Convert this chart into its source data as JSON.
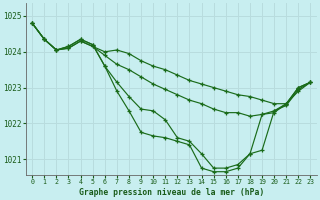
{
  "title": "Graphe pression niveau de la mer (hPa)",
  "bg_color": "#c8eef0",
  "grid_color": "#b8dcde",
  "line_color": "#1a6b1a",
  "marker_color": "#1a6b1a",
  "xlim": [
    -0.5,
    23.5
  ],
  "ylim": [
    1020.55,
    1025.35
  ],
  "yticks": [
    1021,
    1022,
    1023,
    1024,
    1025
  ],
  "xticks": [
    0,
    1,
    2,
    3,
    4,
    5,
    6,
    7,
    8,
    9,
    10,
    11,
    12,
    13,
    14,
    15,
    16,
    17,
    18,
    19,
    20,
    21,
    22,
    23
  ],
  "series": [
    [
      1024.8,
      1024.35,
      1024.05,
      1024.1,
      1024.3,
      1024.15,
      1024.0,
      1024.05,
      1023.95,
      1023.75,
      1023.6,
      1023.5,
      1023.35,
      1023.2,
      1023.1,
      1023.0,
      1022.9,
      1022.8,
      1022.75,
      1022.65,
      1022.55,
      1022.55,
      1022.9,
      1023.15
    ],
    [
      1024.8,
      1024.35,
      1024.05,
      1024.1,
      1024.3,
      1024.15,
      1023.9,
      1023.65,
      1023.5,
      1023.3,
      1023.1,
      1022.95,
      1022.8,
      1022.65,
      1022.55,
      1022.4,
      1022.3,
      1022.3,
      1022.2,
      1022.25,
      1022.35,
      1022.5,
      1022.95,
      1023.15
    ],
    [
      1024.8,
      1024.35,
      1024.05,
      1024.15,
      1024.35,
      1024.2,
      1023.6,
      1023.15,
      1022.75,
      1022.4,
      1022.35,
      1022.1,
      1021.6,
      1021.5,
      1021.15,
      1020.75,
      1020.75,
      1020.85,
      1021.15,
      1022.25,
      1022.3,
      1022.55,
      1023.0,
      1023.15
    ],
    [
      1024.8,
      1024.35,
      1024.05,
      1024.15,
      1024.35,
      1024.2,
      1023.6,
      1022.9,
      1022.35,
      1021.75,
      1021.65,
      1021.6,
      1021.5,
      1021.4,
      1020.75,
      1020.65,
      1020.65,
      1020.75,
      1021.15,
      1021.25,
      1022.35,
      1022.55,
      1023.0,
      1023.15
    ]
  ]
}
